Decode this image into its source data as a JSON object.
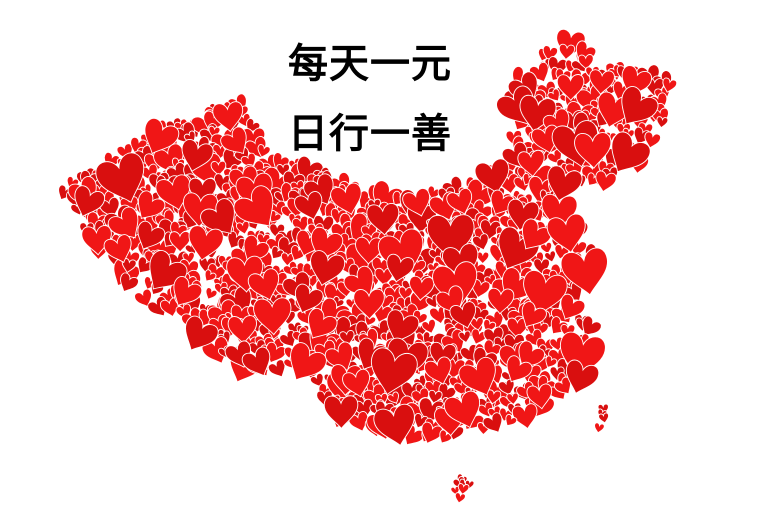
{
  "slogan": {
    "line1": "每天一元",
    "line2": "日行一善"
  },
  "colors": {
    "heart": "#f01616",
    "heart_dark": "#d90f0f",
    "text": "#000000",
    "background": "#ffffff"
  }
}
